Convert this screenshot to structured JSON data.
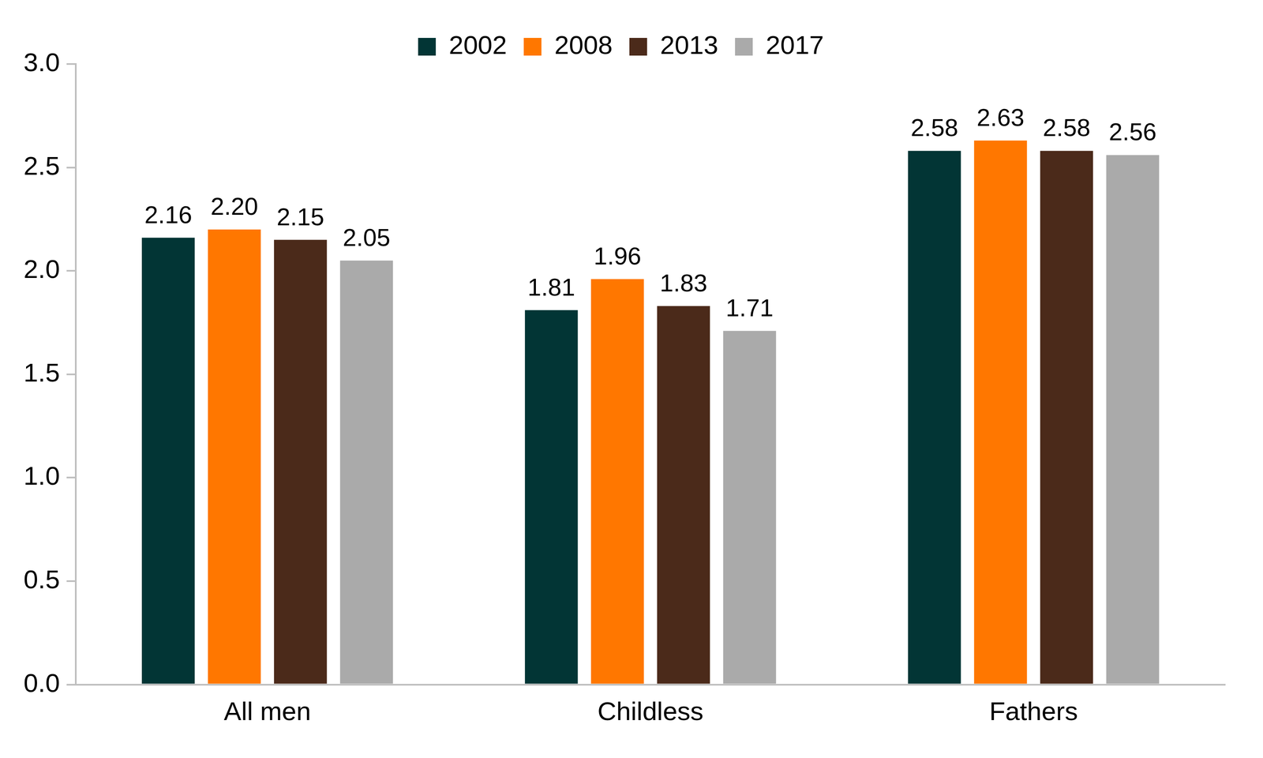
{
  "chart_data": {
    "type": "bar",
    "categories": [
      "All men",
      "Childless",
      "Fathers"
    ],
    "series": [
      {
        "name": "2002",
        "color": "#023535",
        "values": [
          2.16,
          1.81,
          2.58
        ],
        "value_labels": [
          "2.16",
          "1.81",
          "2.58"
        ]
      },
      {
        "name": "2008",
        "color": "#ff7700",
        "values": [
          2.2,
          1.96,
          2.63
        ],
        "value_labels": [
          "2.20",
          "1.96",
          "2.63"
        ]
      },
      {
        "name": "2013",
        "color": "#4b2a1a",
        "values": [
          2.15,
          1.83,
          2.58
        ],
        "value_labels": [
          "2.15",
          "1.83",
          "2.58"
        ]
      },
      {
        "name": "2017",
        "color": "#aaaaaa",
        "values": [
          2.05,
          1.71,
          2.56
        ],
        "value_labels": [
          "2.05",
          "1.71",
          "2.56"
        ]
      }
    ],
    "ylim": [
      0,
      3
    ],
    "yticks": [
      {
        "value": 0,
        "label": "0.0"
      },
      0.5,
      {
        "value": 1,
        "label": "1.0"
      },
      1.5,
      {
        "value": 2,
        "label": "2.0"
      },
      2.5,
      {
        "value": 3,
        "label": "3.0"
      }
    ],
    "grid": false,
    "legend": "top",
    "data_labels": true
  }
}
